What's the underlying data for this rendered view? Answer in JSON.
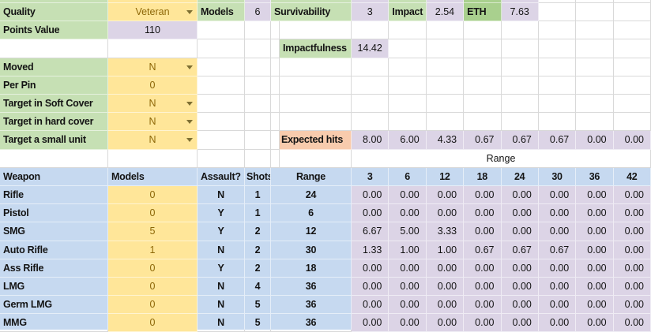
{
  "title_block": {
    "quality": {
      "label": "Quality",
      "value": "Veteran"
    },
    "models": {
      "label": "Models",
      "value": "6"
    },
    "survivability": {
      "label": "Survivability",
      "value": "3"
    },
    "impact": {
      "label": "Impact",
      "value": "2.54"
    },
    "eth": {
      "label": "ETH",
      "value": "7.63"
    },
    "points": {
      "label": "Points Value",
      "value": "110"
    },
    "impactfulness": {
      "label": "Impactfulness",
      "value": "14.42"
    }
  },
  "inputs": {
    "moved": {
      "label": "Moved",
      "value": "N"
    },
    "per_pin": {
      "label": "Per Pin",
      "value": "0"
    },
    "soft_cover": {
      "label": "Target in Soft Cover",
      "value": "N"
    },
    "hard_cover": {
      "label": "Target in hard cover",
      "value": "N"
    },
    "small_unit": {
      "label": "Target a small unit",
      "value": "N"
    }
  },
  "expected_hits": {
    "label": "Expected hits",
    "values": [
      "8.00",
      "6.00",
      "4.33",
      "0.67",
      "0.67",
      "0.67",
      "0.00",
      "0.00"
    ]
  },
  "range_band": {
    "label": "Range"
  },
  "weapon_table": {
    "headers": {
      "weapon": "Weapon",
      "models": "Models",
      "assault": "Assault?",
      "shots": "Shots",
      "range": "Range",
      "range_cols": [
        "3",
        "6",
        "12",
        "18",
        "24",
        "30",
        "36",
        "42"
      ]
    },
    "rows": [
      {
        "weapon": "Rifle",
        "models": "0",
        "assault": "N",
        "shots": "1",
        "range": "24",
        "hits": [
          "0.00",
          "0.00",
          "0.00",
          "0.00",
          "0.00",
          "0.00",
          "0.00",
          "0.00"
        ]
      },
      {
        "weapon": "Pistol",
        "models": "0",
        "assault": "Y",
        "shots": "1",
        "range": "6",
        "hits": [
          "0.00",
          "0.00",
          "0.00",
          "0.00",
          "0.00",
          "0.00",
          "0.00",
          "0.00"
        ]
      },
      {
        "weapon": "SMG",
        "models": "5",
        "assault": "Y",
        "shots": "2",
        "range": "12",
        "hits": [
          "6.67",
          "5.00",
          "3.33",
          "0.00",
          "0.00",
          "0.00",
          "0.00",
          "0.00"
        ]
      },
      {
        "weapon": "Auto Rifle",
        "models": "1",
        "assault": "N",
        "shots": "2",
        "range": "30",
        "hits": [
          "1.33",
          "1.00",
          "1.00",
          "0.67",
          "0.67",
          "0.67",
          "0.00",
          "0.00"
        ]
      },
      {
        "weapon": "Ass Rifle",
        "models": "0",
        "assault": "Y",
        "shots": "2",
        "range": "18",
        "hits": [
          "0.00",
          "0.00",
          "0.00",
          "0.00",
          "0.00",
          "0.00",
          "0.00",
          "0.00"
        ]
      },
      {
        "weapon": "LMG",
        "models": "0",
        "assault": "N",
        "shots": "4",
        "range": "36",
        "hits": [
          "0.00",
          "0.00",
          "0.00",
          "0.00",
          "0.00",
          "0.00",
          "0.00",
          "0.00"
        ]
      },
      {
        "weapon": "Germ LMG",
        "models": "0",
        "assault": "N",
        "shots": "5",
        "range": "36",
        "hits": [
          "0.00",
          "0.00",
          "0.00",
          "0.00",
          "0.00",
          "0.00",
          "0.00",
          "0.00"
        ]
      },
      {
        "weapon": "MMG",
        "models": "0",
        "assault": "N",
        "shots": "5",
        "range": "36",
        "hits": [
          "0.00",
          "0.00",
          "0.00",
          "0.00",
          "0.00",
          "0.00",
          "0.00",
          "0.00"
        ]
      }
    ]
  },
  "colors": {
    "label_green": "#c6e0b4",
    "dark_green": "#a9d08e",
    "input_yellow": "#ffe699",
    "input_text": "#8d6708",
    "result_lavender": "#dcd4e6",
    "table_blue": "#c6d9f0",
    "expected_orange": "#f8cbad",
    "gridline": "#d9d9d9"
  }
}
